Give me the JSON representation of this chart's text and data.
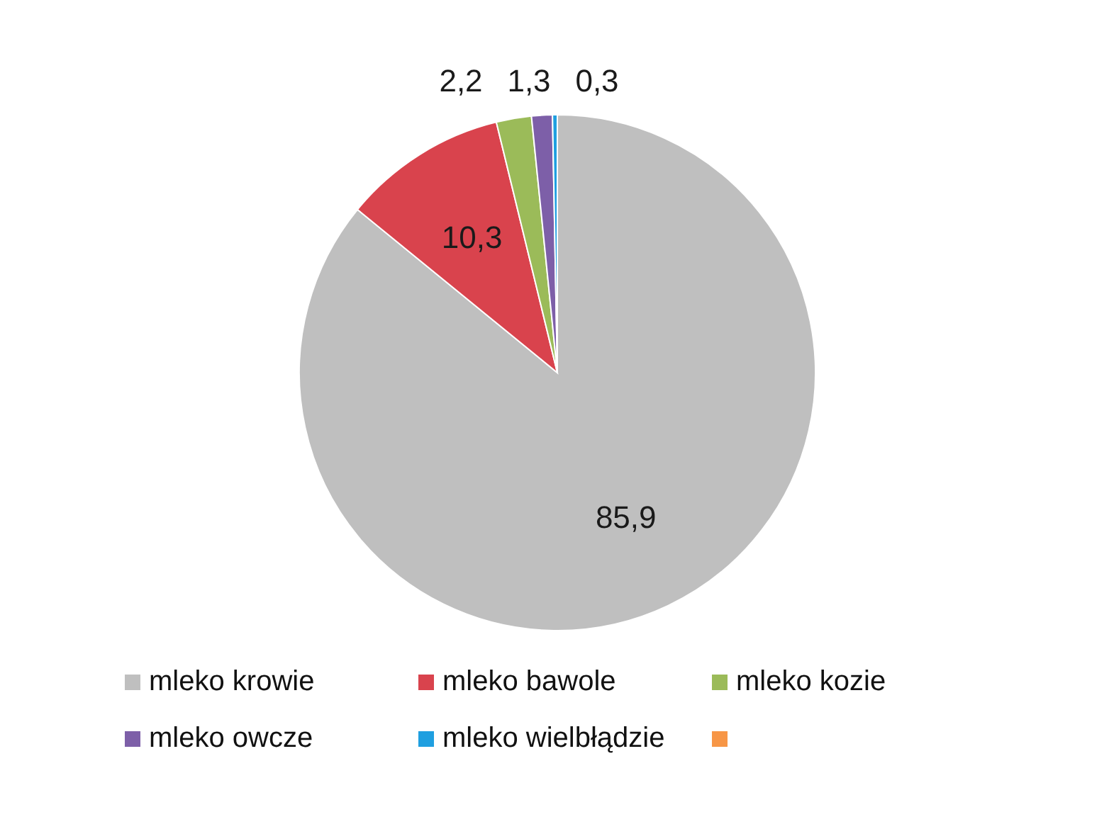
{
  "chart_data": {
    "type": "pie",
    "categories": [
      "mleko krowie",
      "mleko bawole",
      "mleko kozie",
      "mleko owcze",
      "mleko wielbłądzie",
      null
    ],
    "values": [
      85.9,
      10.3,
      2.2,
      1.3,
      0.3,
      0
    ],
    "value_labels": [
      "85,9",
      "10,3",
      "2,2",
      "1,3",
      "0,3",
      null
    ],
    "colors": [
      "#bfbfbf",
      "#d9434d",
      "#9bbb59",
      "#7d5fa8",
      "#1f9fe0",
      "#f79646"
    ],
    "legend": "bottom"
  }
}
